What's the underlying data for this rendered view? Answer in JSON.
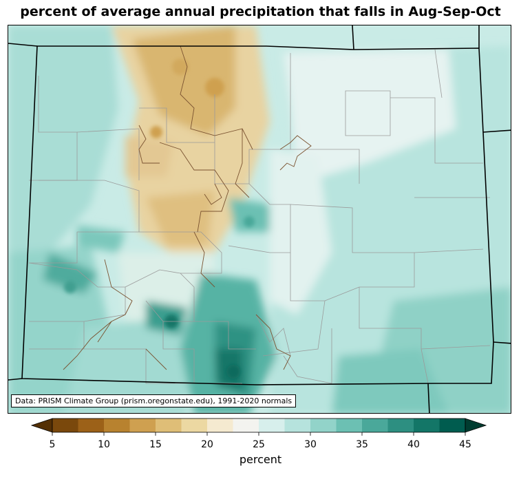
{
  "title": "percent of average annual precipitation that falls in Aug-Sep-Oct",
  "credit": "Data: PRISM Climate Group (prism.oregonstate.edu), 1991-2020 normals",
  "colorbar": {
    "label": "percent",
    "min": 5,
    "max": 45,
    "step": 2.5,
    "extend": "both",
    "ticks": [
      5,
      10,
      15,
      20,
      25,
      30,
      35,
      40,
      45
    ],
    "colors": [
      "#543005",
      "#7a480c",
      "#9c6118",
      "#b8822f",
      "#cfa050",
      "#dfbe77",
      "#ecd8a2",
      "#f5ead0",
      "#f3f3ef",
      "#d7efec",
      "#b6e3dd",
      "#92d3c9",
      "#6cc0b3",
      "#4aa89a",
      "#2d8f81",
      "#137667",
      "#005c4f",
      "#003c30"
    ]
  },
  "map": {
    "region": "Colorado",
    "features": {
      "state_border": "state-border",
      "counties": "county-lines",
      "dry_zone": "central-mountains-dry",
      "wet_zone": "southern-sangre-de-cristo-wet"
    }
  }
}
